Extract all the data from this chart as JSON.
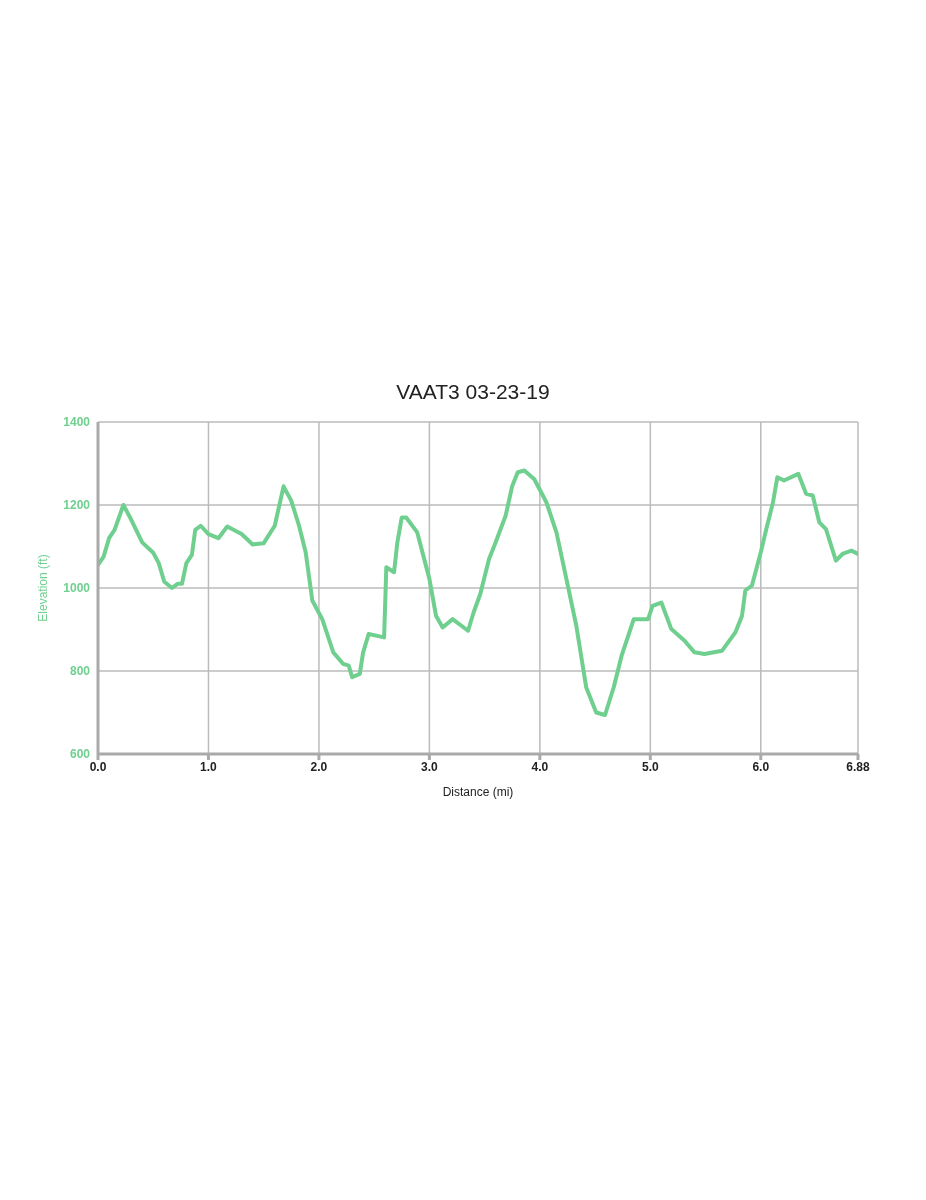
{
  "chart_data": {
    "type": "line",
    "title": "VAAT3 03-23-19",
    "xlabel": "Distance (mi)",
    "ylabel": "Elevation (ft)",
    "x": [
      0,
      0.05,
      0.1,
      0.15,
      0.23,
      0.3,
      0.4,
      0.5,
      0.55,
      0.6,
      0.67,
      0.72,
      0.76,
      0.8,
      0.85,
      0.88,
      0.93,
      1.0,
      1.09,
      1.17,
      1.3,
      1.4,
      1.5,
      1.6,
      1.68,
      1.75,
      1.82,
      1.88,
      1.94,
      2.03,
      2.13,
      2.22,
      2.27,
      2.3,
      2.37,
      2.4,
      2.45,
      2.59,
      2.61,
      2.68,
      2.71,
      2.75,
      2.79,
      2.89,
      3.0,
      3.06,
      3.12,
      3.21,
      3.35,
      3.4,
      3.46,
      3.54,
      3.6,
      3.69,
      3.75,
      3.8,
      3.86,
      3.95,
      4.06,
      4.15,
      4.24,
      4.33,
      4.42,
      4.51,
      4.59,
      4.67,
      4.74,
      4.85,
      4.98,
      5.02,
      5.1,
      5.19,
      5.31,
      5.4,
      5.49,
      5.65,
      5.77,
      5.83,
      5.86,
      5.92,
      6.0,
      6.05,
      6.11,
      6.15,
      6.21,
      6.34,
      6.41,
      6.47,
      6.53,
      6.59,
      6.68,
      6.74,
      6.82,
      6.88
    ],
    "series": [
      {
        "color": "#6fcf8f",
        "values": [
          1056,
          1075,
          1120,
          1140,
          1200,
          1165,
          1110,
          1085,
          1060,
          1015,
          1000,
          1010,
          1010,
          1060,
          1080,
          1140,
          1150,
          1130,
          1120,
          1148,
          1130,
          1105,
          1108,
          1150,
          1245,
          1210,
          1150,
          1086,
          970,
          925,
          845,
          817,
          813,
          785,
          793,
          845,
          889,
          881,
          1050,
          1038,
          1110,
          1170,
          1170,
          1134,
          1022,
          933,
          905,
          925,
          897,
          941,
          985,
          1070,
          1110,
          1174,
          1246,
          1279,
          1283,
          1262,
          1206,
          1134,
          1022,
          909,
          760,
          700,
          694,
          762,
          837,
          925,
          925,
          957,
          965,
          901,
          873,
          845,
          841,
          849,
          893,
          933,
          994,
          1006,
          1086,
          1142,
          1206,
          1267,
          1259,
          1275,
          1227,
          1223,
          1158,
          1142,
          1066,
          1082,
          1090,
          1082
        ]
      }
    ],
    "xlim": [
      0,
      6.88
    ],
    "xticks": [
      {
        "value": 0,
        "label": "0.0"
      },
      {
        "value": 1,
        "label": "1.0"
      },
      {
        "value": 2,
        "label": "2.0"
      },
      {
        "value": 3,
        "label": "3.0"
      },
      {
        "value": 4,
        "label": "4.0"
      },
      {
        "value": 5,
        "label": "5.0"
      },
      {
        "value": 6,
        "label": "6.0"
      },
      6.88
    ],
    "ylim": [
      600,
      1400
    ],
    "yticks": [
      600,
      800,
      1000,
      1200,
      1400
    ],
    "grid": true,
    "marker": "none",
    "line_style": "solid"
  }
}
